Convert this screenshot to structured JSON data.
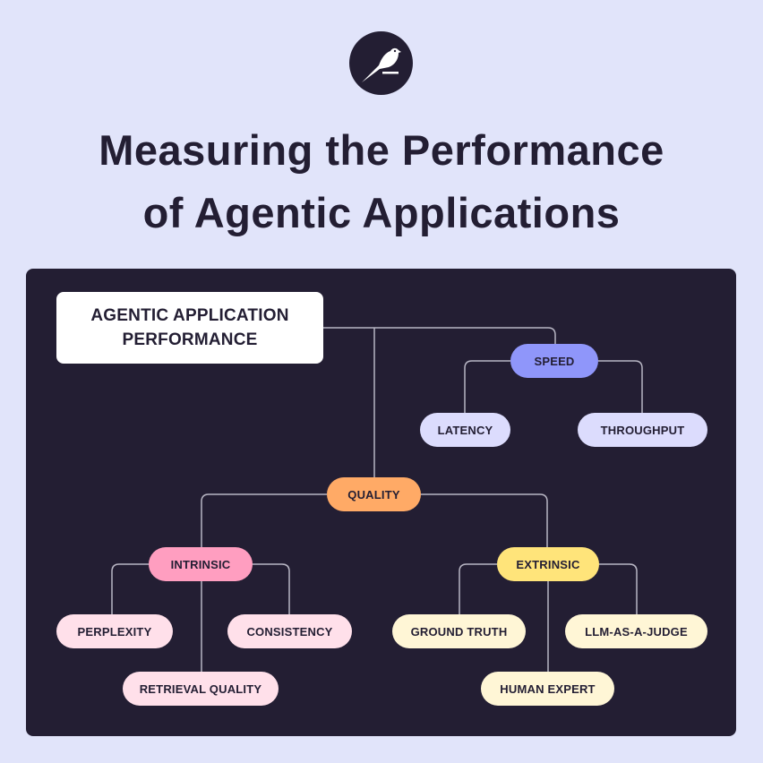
{
  "title": {
    "line1": "Measuring the Performance",
    "line2": "of Agentic Applications"
  },
  "logo": {
    "icon": "bird-logo-icon"
  },
  "colors": {
    "background": "#E1E4FA",
    "panel": "#231E33",
    "speed": "#8F96FA",
    "speed_child": "#DCDCFD",
    "quality": "#FFAA66",
    "intrinsic": "#FF9EC0",
    "intrinsic_child": "#FFE0EA",
    "extrinsic": "#FFE47A",
    "extrinsic_child": "#FFF6D6"
  },
  "diagram": {
    "root": {
      "line1": "AGENTIC APPLICATION",
      "line2": "PERFORMANCE"
    },
    "speed": {
      "label": "SPEED",
      "children": [
        "LATENCY",
        "THROUGHPUT"
      ]
    },
    "quality": {
      "label": "QUALITY"
    },
    "intrinsic": {
      "label": "INTRINSIC",
      "children": [
        "PERPLEXITY",
        "CONSISTENCY",
        "RETRIEVAL QUALITY"
      ]
    },
    "extrinsic": {
      "label": "EXTRINSIC",
      "children": [
        "GROUND TRUTH",
        "LLM-AS-A-JUDGE",
        "HUMAN EXPERT"
      ]
    }
  }
}
